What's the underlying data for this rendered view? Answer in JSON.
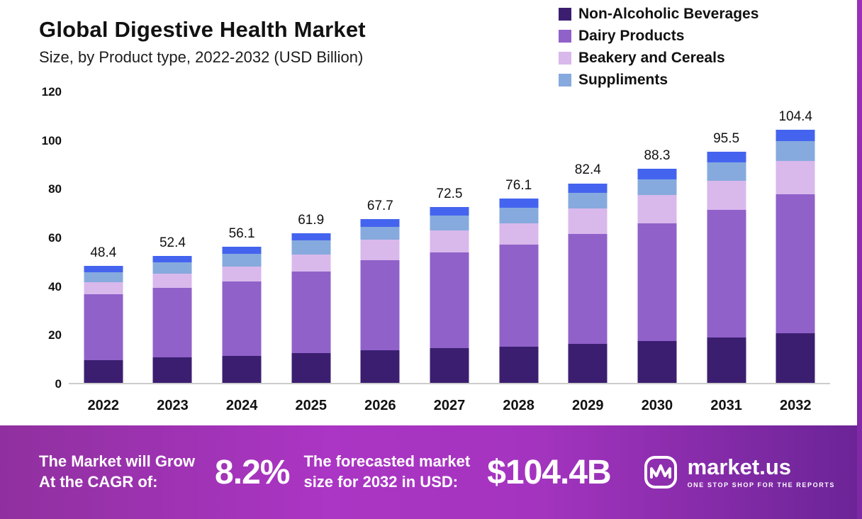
{
  "header": {
    "title": "Global Digestive Health Market",
    "subtitle": "Size, by Product type, 2022-2032 (USD Billion)"
  },
  "chart_data": {
    "type": "bar",
    "stacked": true,
    "title": "Global Digestive Health Market Size, by Product type, 2022-2032 (USD Billion)",
    "categories": [
      "2022",
      "2023",
      "2024",
      "2025",
      "2026",
      "2027",
      "2028",
      "2029",
      "2030",
      "2031",
      "2032"
    ],
    "totals": [
      48.4,
      52.4,
      56.1,
      61.9,
      67.7,
      72.5,
      76.1,
      82.4,
      88.3,
      95.5,
      104.4
    ],
    "series": [
      {
        "name": "Non-Alcoholic Beverages",
        "color": "#3b1e70",
        "in_legend": true,
        "values": [
          9.5,
          10.4,
          11.0,
          12.2,
          13.4,
          14.4,
          15.0,
          16.2,
          17.3,
          18.8,
          20.5
        ]
      },
      {
        "name": "Dairy Products",
        "color": "#9061c9",
        "in_legend": true,
        "values": [
          27.0,
          28.9,
          31.0,
          33.8,
          37.1,
          39.6,
          42.0,
          45.3,
          48.7,
          52.7,
          57.5
        ]
      },
      {
        "name": "Beakery and Cereals",
        "color": "#d9b8ec",
        "in_legend": true,
        "values": [
          5.0,
          5.7,
          6.0,
          7.0,
          8.5,
          9.0,
          9.0,
          10.5,
          11.5,
          12.0,
          13.5
        ]
      },
      {
        "name": "Suppliments",
        "color": "#86aadd",
        "in_legend": true,
        "values": [
          4.3,
          4.8,
          5.3,
          5.9,
          5.4,
          6.0,
          6.4,
          6.4,
          6.5,
          7.5,
          8.2
        ]
      },
      {
        "name": "Other (unlabeled top segment)",
        "color": "#4464ef",
        "in_legend": false,
        "values": [
          2.6,
          2.6,
          2.8,
          3.0,
          3.3,
          3.5,
          3.7,
          4.0,
          4.3,
          4.5,
          4.7
        ]
      }
    ],
    "ylim": [
      0,
      120
    ],
    "yticks": [
      0,
      20,
      40,
      60,
      80,
      100,
      120
    ],
    "legend_position": "top-right",
    "grid": false,
    "xlabel": "",
    "ylabel": ""
  },
  "banner": {
    "cagr_label_line1": "The Market will Grow",
    "cagr_label_line2": "At the CAGR of:",
    "cagr_value": "8.2%",
    "forecast_label_line1": "The forecasted market",
    "forecast_label_line2": "size for 2032 in USD:",
    "forecast_value": "$104.4B",
    "brand": "market.us",
    "brand_tagline": "ONE STOP SHOP FOR THE REPORTS"
  },
  "colors": {
    "banner_purple": "#a434bf",
    "axis_line": "#cccccc",
    "text": "#111111"
  }
}
